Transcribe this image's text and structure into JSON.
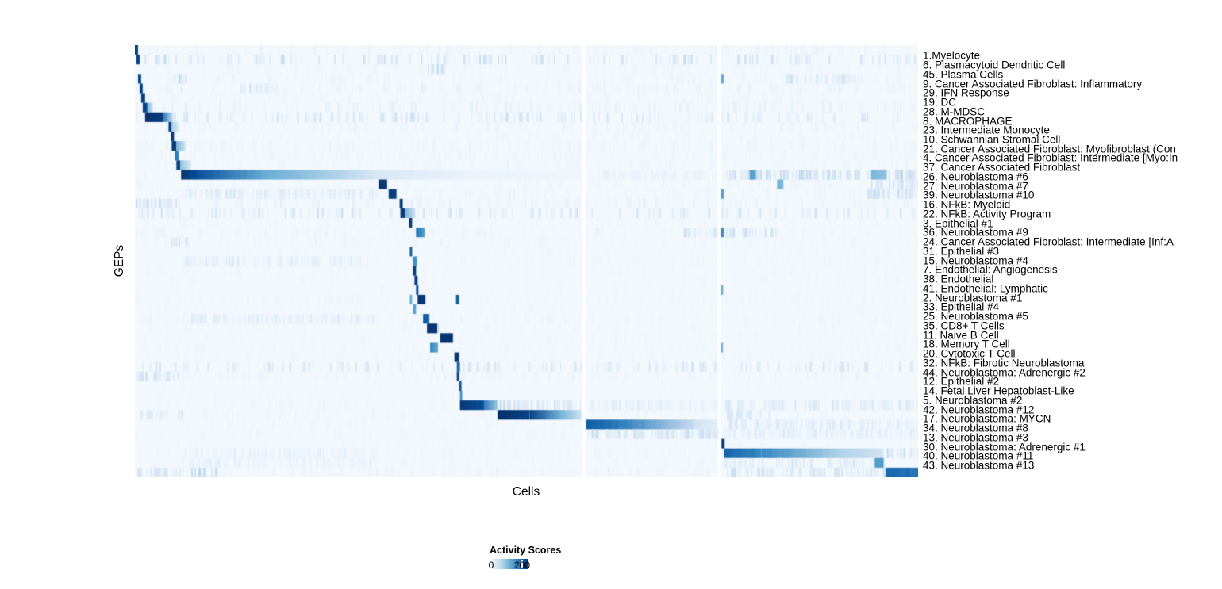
{
  "figure": {
    "background": "#ffffff"
  },
  "chart_data": {
    "type": "heatmap",
    "title": "",
    "xlabel": "Cells",
    "ylabel": "GEPs",
    "grid": false,
    "legend": {
      "title": "Activity Scores",
      "position": "bottom-left",
      "value_max": 235,
      "ticks": [
        {
          "value": 0,
          "label": "0"
        },
        {
          "value": 200,
          "label": "200"
        }
      ],
      "colormap": [
        "#f7fbff",
        "#deebf7",
        "#c6dbef",
        "#9ecae1",
        "#6baed6",
        "#4292c6",
        "#2171b5",
        "#08519c",
        "#08306b"
      ]
    },
    "column_gaps": [
      [
        0.5704,
        0.5766
      ],
      [
        0.7437,
        0.7487
      ]
    ],
    "rows": [
      {
        "label": "1.Myelocyte",
        "noise": 14,
        "segments": [
          [
            0.0,
            0.004,
            215,
            215,
            "solid"
          ]
        ]
      },
      {
        "label": "6. Plasmacytoid Dendritic Cell",
        "noise": 36,
        "segments": [
          [
            0.002,
            0.006,
            220,
            220,
            "solid"
          ]
        ]
      },
      {
        "label": "45. Plasma Cells",
        "noise": 10,
        "segments": [
          [
            0.374,
            0.395,
            55,
            40,
            "streaks"
          ]
        ]
      },
      {
        "label": "9. Cancer Associated Fibroblast: Inflammatory",
        "noise": 13,
        "segments": [
          [
            0.004,
            0.008,
            215,
            215,
            "solid"
          ],
          [
            0.045,
            0.065,
            60,
            35,
            "streaks"
          ],
          [
            0.748,
            0.752,
            120,
            120,
            "solid"
          ],
          [
            0.83,
            0.92,
            40,
            28,
            "streaks"
          ]
        ]
      },
      {
        "label": "29. IFN Response",
        "noise": 15,
        "segments": [
          [
            0.006,
            0.01,
            218,
            218,
            "solid"
          ],
          [
            0.13,
            0.18,
            40,
            28,
            "streaks"
          ]
        ]
      },
      {
        "label": "19. DC",
        "noise": 11,
        "segments": [
          [
            0.008,
            0.013,
            222,
            222,
            "solid"
          ]
        ]
      },
      {
        "label": "28. M-MDSC",
        "noise": 18,
        "segments": [
          [
            0.01,
            0.016,
            225,
            210,
            "solid"
          ],
          [
            0.016,
            0.023,
            110,
            40,
            "solid"
          ]
        ]
      },
      {
        "label": "8. MACROPHAGE",
        "noise": 30,
        "segments": [
          [
            0.013,
            0.036,
            232,
            225,
            "solid"
          ],
          [
            0.036,
            0.049,
            170,
            40,
            "solid"
          ]
        ]
      },
      {
        "label": "23. Intermediate Monocyte",
        "noise": 13,
        "segments": [
          [
            0.043,
            0.047,
            220,
            220,
            "solid"
          ],
          [
            0.047,
            0.056,
            80,
            30,
            "solid"
          ]
        ]
      },
      {
        "label": "10. Schwannian Stromal Cell",
        "noise": 10,
        "segments": [
          [
            0.046,
            0.05,
            225,
            225,
            "solid"
          ]
        ]
      },
      {
        "label": "21. Cancer Associated Fibroblast: Myofibroblast (Con",
        "noise": 14,
        "segments": [
          [
            0.047,
            0.053,
            225,
            225,
            "solid"
          ],
          [
            0.053,
            0.065,
            110,
            35,
            "solid"
          ]
        ]
      },
      {
        "label": "4. Cancer Associated Fibroblast: Intermediate [Myo:In",
        "noise": 12,
        "segments": [
          [
            0.051,
            0.056,
            175,
            155,
            "solid"
          ]
        ]
      },
      {
        "label": "37. Cancer Associated Fibroblast",
        "noise": 11,
        "segments": [
          [
            0.053,
            0.058,
            218,
            218,
            "solid"
          ],
          [
            0.058,
            0.072,
            95,
            30,
            "solid"
          ]
        ]
      },
      {
        "label": "26. Neuroblastoma #6",
        "noise": 8,
        "segments": [
          [
            0.059,
            0.08,
            235,
            205,
            "solid"
          ],
          [
            0.08,
            0.165,
            205,
            120,
            "solid"
          ],
          [
            0.165,
            0.31,
            120,
            35,
            "solid"
          ],
          [
            0.31,
            0.43,
            35,
            14,
            "solid"
          ],
          [
            0.43,
            0.57,
            14,
            8,
            "solid"
          ],
          [
            0.578,
            0.744,
            18,
            12,
            "streaks"
          ],
          [
            0.755,
            0.94,
            55,
            45,
            "streaks"
          ],
          [
            0.94,
            0.96,
            110,
            95,
            "solid"
          ],
          [
            0.96,
            1.0,
            60,
            45,
            "streaks"
          ],
          [
            0.785,
            0.793,
            130,
            130,
            "solid"
          ]
        ]
      },
      {
        "label": "27. Neuroblastoma #7",
        "noise": 11,
        "segments": [
          [
            0.311,
            0.322,
            228,
            228,
            "solid"
          ],
          [
            0.82,
            0.828,
            110,
            110,
            "solid"
          ],
          [
            0.94,
            1.0,
            50,
            38,
            "streaks"
          ]
        ]
      },
      {
        "label": "39. Neuroblastoma #10",
        "noise": 13,
        "segments": [
          [
            0.324,
            0.334,
            222,
            222,
            "solid"
          ],
          [
            0.062,
            0.31,
            32,
            22,
            "streaks"
          ],
          [
            0.748,
            0.752,
            130,
            130,
            "solid"
          ],
          [
            0.93,
            1.0,
            45,
            35,
            "streaks"
          ]
        ]
      },
      {
        "label": "16. NFkB: Myeloid",
        "noise": 17,
        "segments": [
          [
            0.338,
            0.342,
            222,
            222,
            "solid"
          ],
          [
            0.0,
            0.06,
            48,
            34,
            "streaks"
          ]
        ]
      },
      {
        "label": "22. NFkB: Activity Program",
        "noise": 30,
        "segments": [
          [
            0.339,
            0.345,
            226,
            226,
            "solid"
          ],
          [
            0.345,
            0.358,
            110,
            45,
            "solid"
          ]
        ]
      },
      {
        "label": "3. Epithelial #1",
        "noise": 9,
        "segments": [
          [
            0.35,
            0.354,
            226,
            226,
            "solid"
          ]
        ]
      },
      {
        "label": "36. Neuroblastoma #9",
        "noise": 13,
        "segments": [
          [
            0.359,
            0.37,
            175,
            130,
            "solid"
          ],
          [
            0.7,
            0.744,
            38,
            28,
            "streaks"
          ],
          [
            0.748,
            0.752,
            150,
            150,
            "solid"
          ],
          [
            0.752,
            0.82,
            42,
            30,
            "streaks"
          ]
        ]
      },
      {
        "label": "24. Cancer Associated Fibroblast: Intermediate [Inf:A",
        "noise": 11,
        "segments": [
          [
            0.046,
            0.068,
            45,
            30,
            "streaks"
          ]
        ]
      },
      {
        "label": "31. Epithelial #3",
        "noise": 7,
        "segments": [
          [
            0.351,
            0.354,
            195,
            195,
            "solid"
          ]
        ]
      },
      {
        "label": "15. Neuroblastoma #4",
        "noise": 9,
        "segments": [
          [
            0.355,
            0.36,
            150,
            150,
            "solid"
          ],
          [
            0.062,
            0.3,
            26,
            18,
            "streaks"
          ]
        ]
      },
      {
        "label": "7. Endothelial: Angiogenesis",
        "noise": 9,
        "segments": [
          [
            0.355,
            0.359,
            228,
            228,
            "solid"
          ]
        ]
      },
      {
        "label": "38. Endothelial",
        "noise": 8,
        "segments": [
          [
            0.357,
            0.361,
            222,
            222,
            "solid"
          ]
        ]
      },
      {
        "label": "41. Endothelial: Lymphatic",
        "noise": 7,
        "segments": [
          [
            0.359,
            0.362,
            205,
            205,
            "solid"
          ],
          [
            0.748,
            0.751,
            120,
            120,
            "solid"
          ]
        ]
      },
      {
        "label": "2. Neuroblastoma #1",
        "noise": 11,
        "segments": [
          [
            0.361,
            0.371,
            228,
            228,
            "solid"
          ],
          [
            0.41,
            0.414,
            195,
            195,
            "solid"
          ],
          [
            0.351,
            0.354,
            120,
            120,
            "solid"
          ]
        ]
      },
      {
        "label": "33. Epithelial #4",
        "noise": 7,
        "segments": [
          [
            0.355,
            0.359,
            130,
            130,
            "solid"
          ]
        ]
      },
      {
        "label": "25. Neuroblastoma #5",
        "noise": 11,
        "segments": [
          [
            0.368,
            0.376,
            200,
            185,
            "solid"
          ],
          [
            0.062,
            0.31,
            26,
            18,
            "streaks"
          ]
        ]
      },
      {
        "label": "35. CD8+ T Cells",
        "noise": 9,
        "segments": [
          [
            0.373,
            0.386,
            232,
            228,
            "solid"
          ]
        ]
      },
      {
        "label": "11. Naive B Cell",
        "noise": 9,
        "segments": [
          [
            0.39,
            0.406,
            232,
            232,
            "solid"
          ]
        ]
      },
      {
        "label": "18. Memory T Cell",
        "noise": 9,
        "segments": [
          [
            0.377,
            0.387,
            160,
            120,
            "solid"
          ],
          [
            0.748,
            0.751,
            110,
            110,
            "solid"
          ]
        ]
      },
      {
        "label": "20. Cytotoxic T Cell",
        "noise": 9,
        "segments": [
          [
            0.408,
            0.414,
            226,
            226,
            "solid"
          ]
        ]
      },
      {
        "label": "32. NFkB: Fibrotic Neuroblastoma",
        "noise": 28,
        "segments": [
          [
            0.411,
            0.415,
            185,
            185,
            "solid"
          ]
        ]
      },
      {
        "label": "44. Neuroblastoma: Adrenergic #2",
        "noise": 13,
        "segments": [
          [
            0.411,
            0.414,
            218,
            218,
            "solid"
          ],
          [
            0.0,
            0.06,
            42,
            30,
            "streaks"
          ]
        ]
      },
      {
        "label": "12. Epithelial #2",
        "noise": 5,
        "segments": [
          [
            0.414,
            0.417,
            205,
            205,
            "solid"
          ]
        ]
      },
      {
        "label": "14. Fetal Liver Hepatoblast-Like",
        "noise": 5,
        "segments": [
          [
            0.415,
            0.418,
            145,
            145,
            "solid"
          ]
        ]
      },
      {
        "label": "5. Neuroblastoma #2",
        "noise": 10,
        "segments": [
          [
            0.415,
            0.446,
            228,
            205,
            "solid"
          ],
          [
            0.446,
            0.463,
            170,
            85,
            "solid"
          ],
          [
            0.463,
            0.57,
            55,
            24,
            "streaks"
          ],
          [
            0.578,
            0.744,
            24,
            14,
            "streaks"
          ],
          [
            0.752,
            1.0,
            34,
            24,
            "streaks"
          ]
        ]
      },
      {
        "label": "42. Neuroblastoma #12",
        "noise": 11,
        "segments": [
          [
            0.463,
            0.504,
            235,
            218,
            "solid"
          ],
          [
            0.504,
            0.545,
            218,
            110,
            "solid"
          ],
          [
            0.545,
            0.57,
            110,
            45,
            "solid"
          ],
          [
            0.0,
            0.062,
            38,
            26,
            "streaks"
          ],
          [
            0.752,
            0.81,
            38,
            26,
            "streaks"
          ]
        ]
      },
      {
        "label": "17. Neuroblastoma: MYCN",
        "noise": 10,
        "segments": [
          [
            0.576,
            0.62,
            195,
            165,
            "solid"
          ],
          [
            0.62,
            0.714,
            165,
            55,
            "solid"
          ],
          [
            0.714,
            0.744,
            45,
            24,
            "solid"
          ],
          [
            0.752,
            1.0,
            32,
            22,
            "streaks"
          ]
        ]
      },
      {
        "label": "34. Neuroblastoma #8",
        "noise": 10,
        "segments": [
          [
            0.578,
            0.744,
            42,
            28,
            "streaks"
          ],
          [
            0.699,
            0.742,
            65,
            48,
            "streaks"
          ],
          [
            0.752,
            1.0,
            28,
            20,
            "streaks"
          ]
        ]
      },
      {
        "label": "13. Neuroblastoma #3",
        "noise": 7,
        "segments": [
          [
            0.749,
            0.753,
            224,
            224,
            "solid"
          ]
        ]
      },
      {
        "label": "30. Neuroblastoma: Adrenergic #1",
        "noise": 11,
        "segments": [
          [
            0.752,
            0.8,
            185,
            155,
            "solid"
          ],
          [
            0.8,
            0.9,
            155,
            75,
            "solid"
          ],
          [
            0.9,
            0.955,
            75,
            45,
            "solid"
          ],
          [
            0.955,
            1.0,
            55,
            42,
            "streaks"
          ],
          [
            0.062,
            0.31,
            20,
            14,
            "streaks"
          ]
        ]
      },
      {
        "label": "40. Neuroblastoma #11",
        "noise": 9,
        "segments": [
          [
            0.944,
            0.956,
            135,
            135,
            "solid"
          ],
          [
            0.752,
            0.944,
            32,
            22,
            "streaks"
          ],
          [
            0.062,
            0.31,
            18,
            12,
            "streaks"
          ]
        ]
      },
      {
        "label": "43. Neuroblastoma #13",
        "noise": 13,
        "segments": [
          [
            0.957,
            1.0,
            185,
            170,
            "solid"
          ],
          [
            0.752,
            0.957,
            42,
            28,
            "streaks"
          ],
          [
            0.0,
            0.062,
            42,
            30,
            "streaks"
          ],
          [
            0.07,
            0.104,
            60,
            45,
            "streaks"
          ]
        ]
      }
    ]
  }
}
